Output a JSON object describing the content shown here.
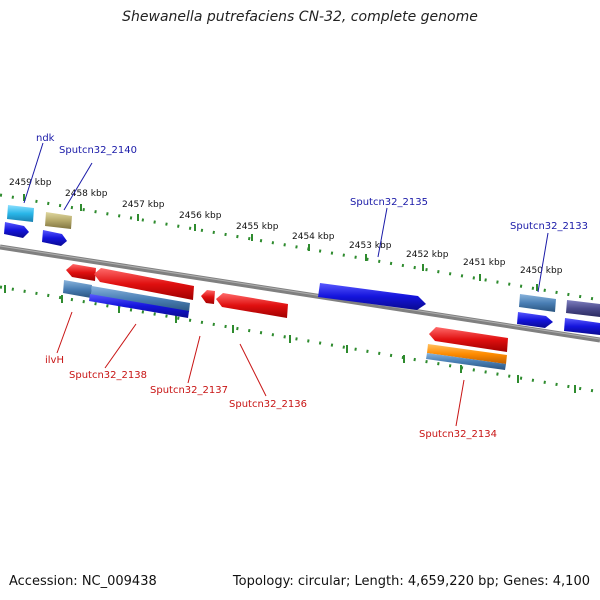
{
  "title": "Shewanella putrefaciens CN-32, complete genome",
  "footer": {
    "accession": "Accession: NC_009438",
    "summary": "Topology: circular; Length: 4,659,220 bp; Genes: 4,100"
  },
  "ticks": [
    "2459 kbp",
    "2458 kbp",
    "2457 kbp",
    "2456 kbp",
    "2455 kbp",
    "2454 kbp",
    "2453 kbp",
    "2452 kbp",
    "2451 kbp",
    "2450 kbp"
  ],
  "labels_top": [
    "ndk",
    "Sputcn32_2140",
    "Sputcn32_2135",
    "Sputcn32_2133"
  ],
  "labels_bottom": [
    "ilvH",
    "Sputcn32_2138",
    "Sputcn32_2137",
    "Sputcn32_2136",
    "Sputcn32_2134"
  ],
  "colors": {
    "backbone": "#808080",
    "dotted_track": "#2e8b2e",
    "cds_red": "#e01010",
    "cds_blue": "#1414dc",
    "cds_cyan": "#29b6e8",
    "cds_khaki": "#b5a96a",
    "cds_steel": "#4a7fb5",
    "cds_orange": "#ff8c00",
    "cds_slate": "#4b4b8c",
    "label_blue": "#1a1aa8",
    "label_red": "#c81414"
  }
}
